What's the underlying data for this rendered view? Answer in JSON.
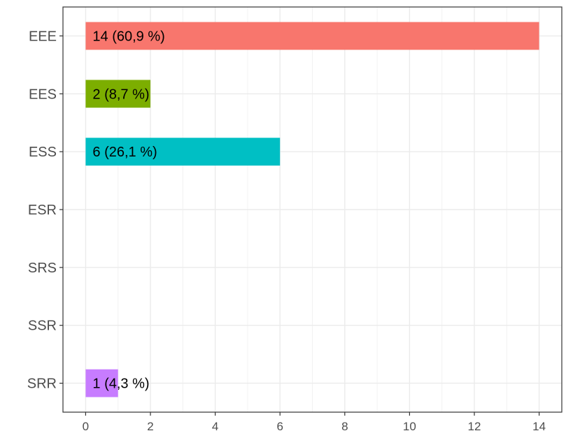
{
  "chart_data": {
    "type": "bar",
    "orientation": "horizontal",
    "categories": [
      "EEE",
      "EES",
      "ESS",
      "ESR",
      "SRS",
      "SSR",
      "SRR"
    ],
    "values": [
      14,
      2,
      6,
      0,
      0,
      0,
      1
    ],
    "bar_labels": [
      "14 (60,9 %)",
      "2 (8,7 %)",
      "6 (26,1 %)",
      "",
      "",
      "",
      "1 (4,3 %)"
    ],
    "colors": [
      "#F8766D",
      "#7CAE00",
      "#00BFC4",
      "#00BFC4",
      "#00BFC4",
      "#00BFC4",
      "#C77CFF"
    ],
    "xlim": [
      -0.7,
      14.7
    ],
    "xticks": [
      0,
      2,
      4,
      6,
      8,
      10,
      12,
      14
    ],
    "xtick_labels": [
      "0",
      "2",
      "4",
      "6",
      "8",
      "10",
      "12",
      "14"
    ],
    "grid": true,
    "title": "",
    "xlabel": "",
    "ylabel": ""
  }
}
